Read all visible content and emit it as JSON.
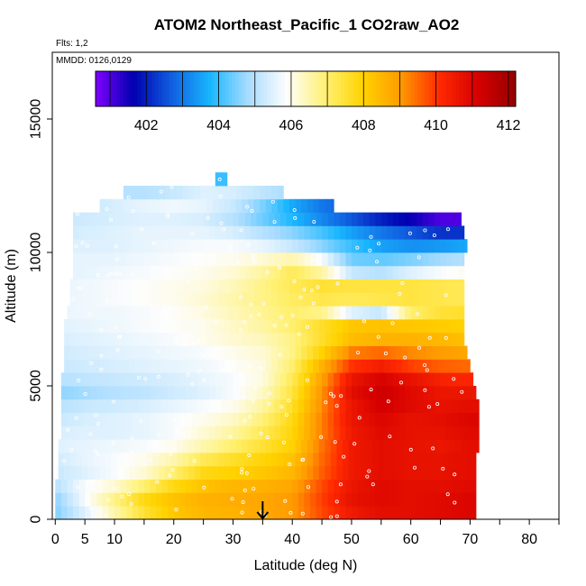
{
  "chart_data": {
    "type": "heatmap",
    "title": "ATOM2 Northeast_Pacific_1 CO2raw_AO2",
    "flights_note": "Flts: 1,2",
    "dates_note": "MMDD: 0126,0129",
    "xlabel": "Latitude (deg N)",
    "ylabel": "Altitude (m)",
    "xlim": [
      -0.5,
      85
    ],
    "ylim": [
      0,
      17500
    ],
    "x_ticks": [
      0,
      5,
      10,
      20,
      30,
      40,
      50,
      60,
      70,
      80
    ],
    "y_ticks": [
      0,
      5000,
      10000,
      15000
    ],
    "colorbar": {
      "range": [
        400.6,
        412.2
      ],
      "ticks": [
        402,
        404,
        406,
        408,
        410,
        412
      ],
      "colors": [
        "#7f00ff",
        "#0000b0",
        "#1060e0",
        "#19b6ff",
        "#a8dcff",
        "#fdfdfd",
        "#fff176",
        "#ffd300",
        "#ff9a00",
        "#ff2a00",
        "#d60000",
        "#960000"
      ]
    },
    "marker": {
      "latitude": 35,
      "symbol": "down-arrow"
    },
    "alt_rows": [
      250,
      750,
      1250,
      1750,
      2250,
      2750,
      3250,
      3750,
      4250,
      4750,
      5250,
      5750,
      6250,
      6750,
      7250,
      7750,
      8250,
      8750,
      9250,
      9750,
      10250,
      10750,
      11250,
      11750,
      12250,
      12750
    ],
    "row_lat_extent": [
      [
        0,
        71
      ],
      [
        0,
        71
      ],
      [
        0,
        71
      ],
      [
        0.5,
        71
      ],
      [
        0.5,
        71
      ],
      [
        0.5,
        71.5
      ],
      [
        1,
        71.5
      ],
      [
        1,
        71.5
      ],
      [
        1,
        71.5
      ],
      [
        1,
        71
      ],
      [
        1,
        70.5
      ],
      [
        1.5,
        70
      ],
      [
        1.5,
        69.5
      ],
      [
        1.5,
        69
      ],
      [
        1.5,
        69
      ],
      [
        2,
        69
      ],
      [
        2.5,
        69
      ],
      [
        2.5,
        69
      ],
      [
        3,
        69
      ],
      [
        3,
        69
      ],
      [
        3,
        69.5
      ],
      [
        3,
        69
      ],
      [
        3,
        68.5
      ],
      [
        7.5,
        47
      ],
      [
        11.5,
        38.5
      ],
      [
        27,
        29
      ]
    ],
    "lat_nodes": [
      0,
      5,
      10,
      15,
      20,
      25,
      30,
      35,
      40,
      45,
      50,
      55,
      60,
      65,
      70
    ],
    "co2_grid": [
      [
        404.5,
        405.5,
        406.5,
        407.5,
        408.2,
        408.5,
        408.6,
        408.8,
        409.0,
        409.8,
        410.5,
        410.8,
        410.8,
        410.9,
        411.0
      ],
      [
        404.6,
        405.8,
        406.8,
        407.8,
        408.3,
        408.6,
        408.7,
        408.8,
        409.0,
        409.9,
        410.7,
        410.9,
        410.8,
        410.9,
        411.0
      ],
      [
        405.0,
        405.8,
        406.2,
        407.0,
        407.8,
        408.3,
        408.5,
        408.6,
        408.8,
        409.8,
        410.6,
        410.9,
        410.8,
        410.8,
        410.9
      ],
      [
        405.2,
        405.5,
        405.8,
        406.2,
        407.0,
        407.8,
        408.0,
        408.2,
        408.5,
        409.6,
        410.5,
        410.8,
        410.7,
        410.7,
        410.8
      ],
      [
        405.3,
        405.6,
        405.8,
        406.0,
        406.5,
        407.2,
        407.6,
        407.9,
        408.3,
        409.5,
        410.5,
        410.8,
        410.7,
        410.7,
        410.8
      ],
      [
        405.5,
        405.6,
        405.7,
        405.8,
        406.0,
        406.5,
        407.0,
        407.5,
        408.0,
        409.4,
        410.5,
        410.8,
        410.7,
        410.6,
        410.8
      ],
      [
        405.4,
        405.5,
        405.5,
        405.6,
        405.8,
        406.2,
        406.6,
        407.2,
        407.9,
        409.3,
        410.5,
        410.9,
        410.7,
        410.7,
        410.9
      ],
      [
        405.2,
        405.4,
        405.5,
        405.6,
        405.8,
        406.0,
        406.3,
        406.9,
        407.8,
        409.3,
        410.6,
        411.0,
        410.7,
        410.8,
        411.0
      ],
      [
        405.0,
        405.2,
        405.3,
        405.4,
        405.6,
        405.8,
        406.0,
        406.6,
        407.6,
        409.2,
        410.6,
        411.2,
        410.9,
        410.7,
        410.8
      ],
      [
        404.6,
        404.8,
        405.0,
        405.1,
        405.3,
        405.5,
        405.8,
        406.3,
        407.4,
        409.1,
        410.8,
        411.3,
        410.9,
        410.6,
        410.6
      ],
      [
        405.0,
        405.1,
        405.2,
        405.3,
        405.4,
        405.6,
        405.8,
        406.1,
        407.2,
        408.9,
        410.6,
        411.1,
        410.7,
        410.3,
        410.2
      ],
      [
        405.2,
        405.3,
        405.4,
        405.5,
        405.6,
        405.7,
        405.9,
        406.1,
        407.0,
        408.6,
        410.0,
        410.4,
        409.9,
        409.6,
        409.5
      ],
      [
        405.3,
        405.4,
        405.5,
        405.6,
        405.7,
        405.8,
        406.0,
        406.2,
        406.8,
        408.0,
        409.3,
        409.5,
        409.2,
        409.0,
        408.8
      ],
      [
        405.4,
        405.5,
        405.6,
        405.7,
        405.8,
        406.0,
        406.2,
        406.4,
        406.8,
        407.6,
        408.4,
        408.6,
        408.6,
        408.5,
        408.3
      ],
      [
        405.5,
        405.6,
        405.7,
        405.8,
        405.9,
        406.0,
        406.3,
        406.6,
        407.0,
        407.6,
        408.2,
        408.3,
        408.2,
        408.1,
        408.0
      ],
      [
        405.6,
        405.7,
        405.7,
        405.8,
        405.9,
        406.1,
        406.4,
        406.7,
        407.0,
        406.8,
        405.5,
        405.2,
        407.0,
        407.5,
        407.6
      ],
      [
        405.6,
        405.7,
        405.8,
        405.9,
        406.0,
        406.2,
        406.5,
        406.8,
        407.1,
        407.3,
        407.2,
        407.3,
        407.4,
        407.3,
        407.2
      ],
      [
        405.6,
        405.7,
        405.8,
        405.9,
        406.0,
        406.1,
        406.4,
        406.8,
        407.2,
        407.5,
        407.4,
        407.4,
        407.4,
        407.3,
        407.2
      ],
      [
        405.5,
        405.6,
        405.7,
        405.8,
        405.9,
        406.0,
        406.2,
        406.6,
        407.2,
        406.6,
        405.2,
        405.0,
        405.5,
        405.8,
        406.0
      ],
      [
        405.5,
        405.6,
        405.6,
        405.7,
        405.8,
        405.9,
        406.0,
        406.2,
        406.5,
        405.8,
        404.4,
        404.3,
        404.5,
        404.8,
        405.0
      ],
      [
        405.4,
        405.5,
        405.5,
        405.6,
        405.7,
        405.8,
        405.8,
        405.6,
        405.2,
        404.6,
        404.0,
        403.5,
        403.3,
        403.4,
        403.6
      ],
      [
        405.3,
        405.4,
        405.5,
        405.6,
        405.6,
        405.6,
        405.4,
        405.0,
        404.6,
        404.1,
        403.5,
        403.0,
        402.6,
        402.2,
        402.2
      ],
      [
        405.2,
        405.3,
        405.4,
        405.5,
        405.5,
        405.4,
        405.0,
        404.4,
        403.8,
        403.2,
        402.6,
        402.0,
        401.6,
        401.0,
        401.0
      ],
      [
        405.0,
        405.2,
        405.4,
        405.6,
        405.7,
        405.6,
        405.2,
        404.5,
        403.6,
        403.0,
        402.6,
        402.4,
        402.2,
        402.0,
        402.0
      ],
      [
        405.0,
        405.0,
        405.0,
        405.0,
        405.2,
        405.5,
        405.4,
        405.1,
        404.8,
        404.5,
        404.4,
        404.4,
        404.4,
        404.4,
        404.4
      ],
      [
        404.0,
        404.0,
        404.0,
        404.0,
        404.0,
        404.0,
        404.0,
        404.0,
        404.0,
        404.0,
        404.0,
        404.0,
        404.0,
        404.0,
        404.0
      ]
    ]
  }
}
